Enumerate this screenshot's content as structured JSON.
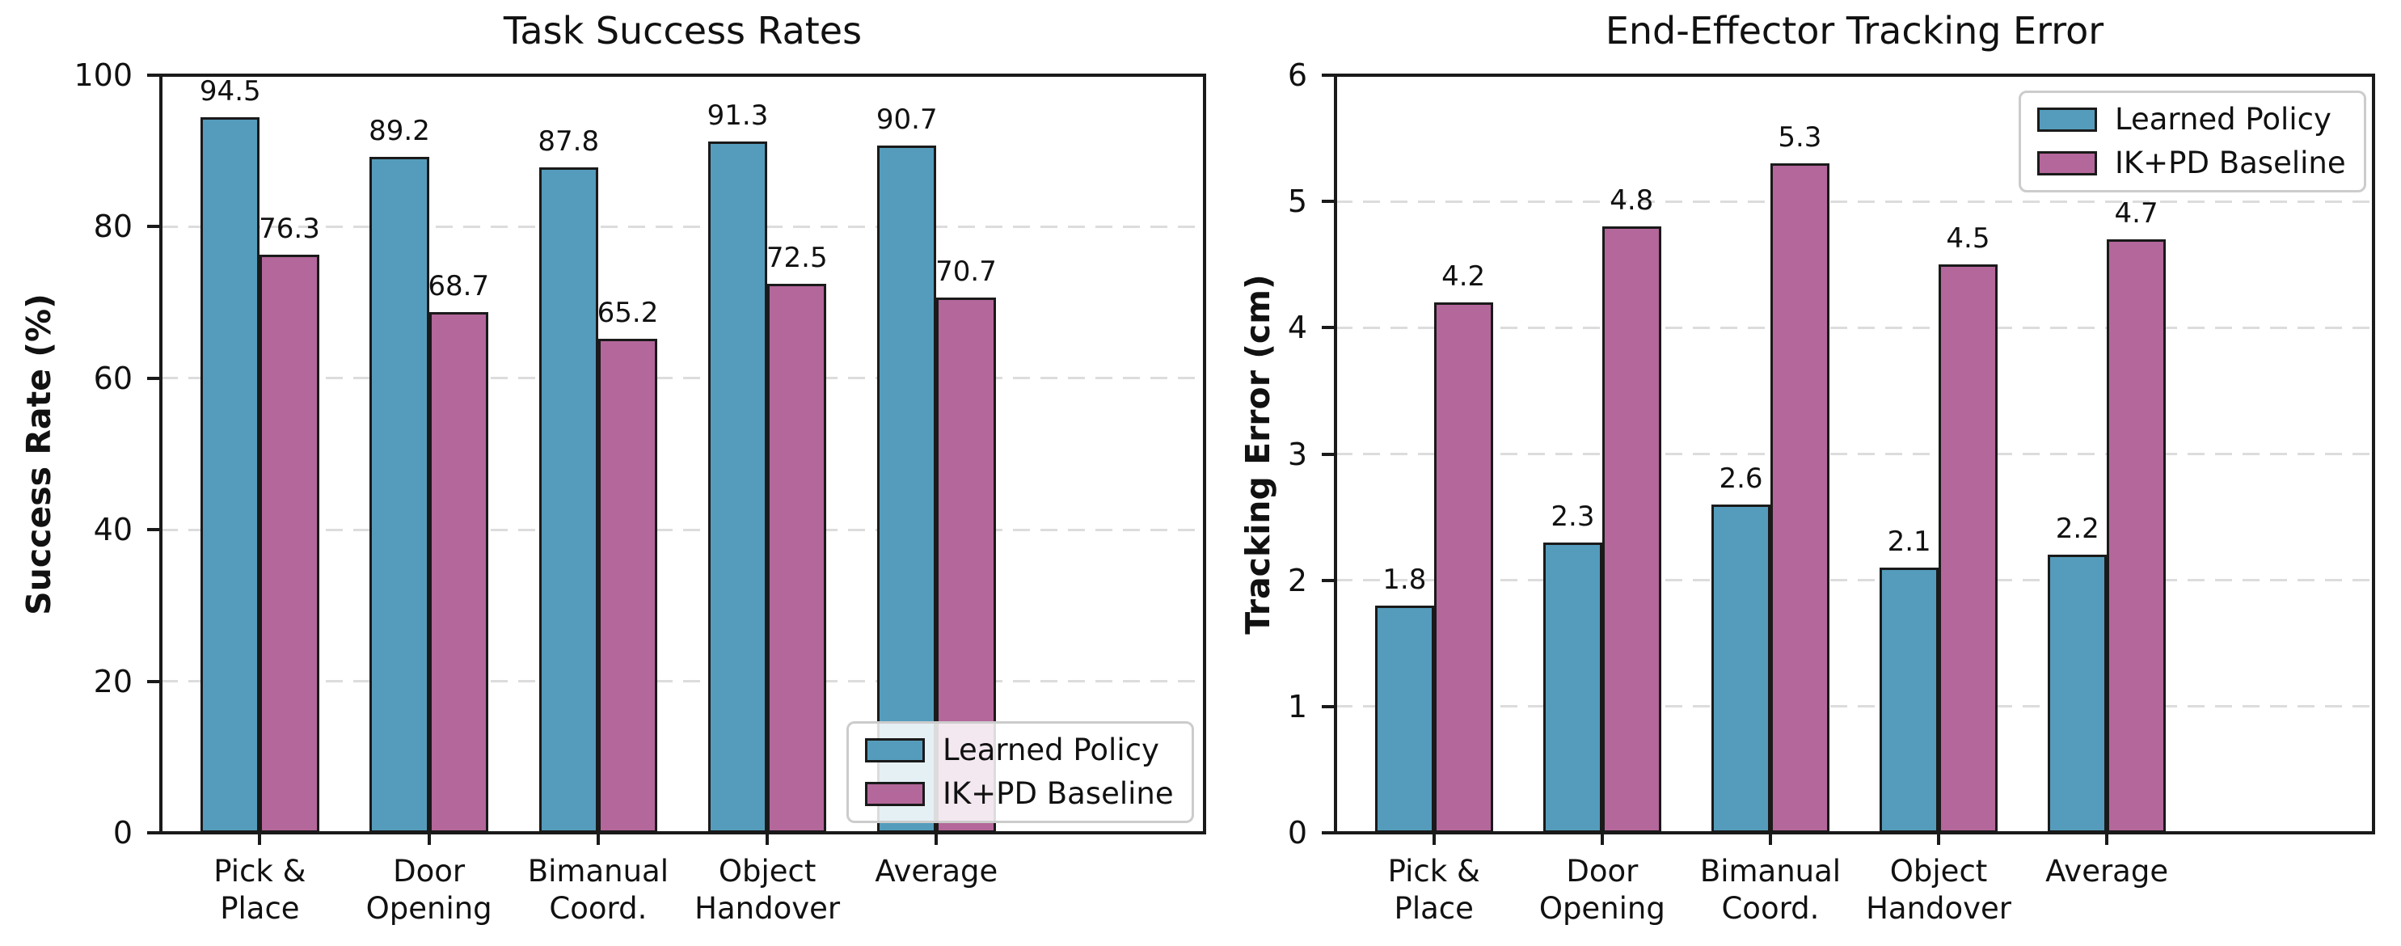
{
  "figure": {
    "background_color": "#ffffff",
    "text_color": "#111111",
    "grid_color": "#dcdcdc",
    "bar_edge_color": "#1a1a1a"
  },
  "chart_data": [
    {
      "type": "bar",
      "title": "Task Success Rates",
      "xlabel": "",
      "ylabel": "Success Rate (%)",
      "categories": [
        "Pick &\nPlace",
        "Door\nOpening",
        "Bimanual\nCoord.",
        "Object\nHandover",
        "Average"
      ],
      "series": [
        {
          "name": "Learned Policy",
          "color": "#559CBC",
          "values": [
            94.5,
            89.2,
            87.8,
            91.3,
            90.7
          ]
        },
        {
          "name": "IK+PD Baseline",
          "color": "#B4679A",
          "values": [
            76.3,
            68.7,
            65.2,
            72.5,
            70.7
          ]
        }
      ],
      "ylim": [
        0,
        100
      ],
      "yticks": [
        0,
        20,
        40,
        60,
        80,
        100
      ],
      "grid": "horizontal-dashed",
      "legend_position": "lower-right"
    },
    {
      "type": "bar",
      "title": "End-Effector Tracking Error",
      "xlabel": "",
      "ylabel": "Tracking Error (cm)",
      "categories": [
        "Pick &\nPlace",
        "Door\nOpening",
        "Bimanual\nCoord.",
        "Object\nHandover",
        "Average"
      ],
      "series": [
        {
          "name": "Learned Policy",
          "color": "#559CBC",
          "values": [
            1.8,
            2.3,
            2.6,
            2.1,
            2.2
          ]
        },
        {
          "name": "IK+PD Baseline",
          "color": "#B4679A",
          "values": [
            4.2,
            4.8,
            5.3,
            4.5,
            4.7
          ]
        }
      ],
      "ylim": [
        0,
        6
      ],
      "yticks": [
        0,
        1,
        2,
        3,
        4,
        5,
        6
      ],
      "grid": "horizontal-dashed",
      "legend_position": "upper-right"
    }
  ]
}
